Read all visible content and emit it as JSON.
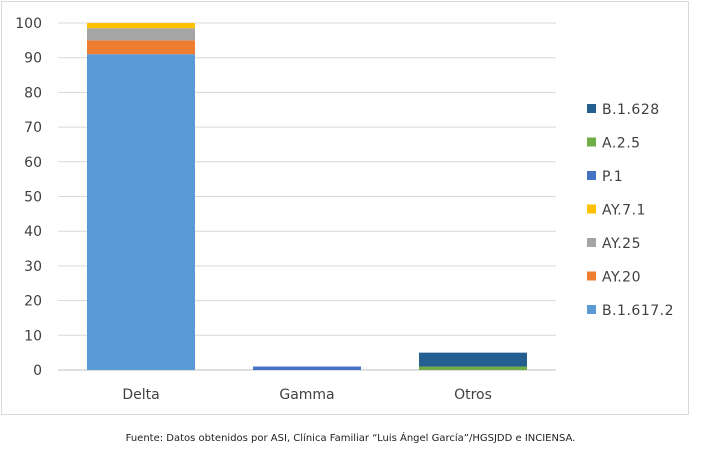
{
  "chart_data": {
    "type": "bar",
    "stacked": true,
    "categories": [
      "Delta",
      "Gamma",
      "Otros"
    ],
    "series": [
      {
        "name": "B.1.617.2",
        "color": "#5b9bd5",
        "values": [
          91,
          0,
          0
        ]
      },
      {
        "name": "AY.20",
        "color": "#ed7d31",
        "values": [
          4,
          0,
          0
        ]
      },
      {
        "name": "AY.25",
        "color": "#a5a5a5",
        "values": [
          3.5,
          0,
          0
        ]
      },
      {
        "name": "AY.7.1",
        "color": "#ffc000",
        "values": [
          1.5,
          0,
          0
        ]
      },
      {
        "name": "P.1",
        "color": "#4472c4",
        "values": [
          0,
          1,
          0
        ]
      },
      {
        "name": "A.2.5",
        "color": "#70ad47",
        "values": [
          0,
          0,
          1
        ]
      },
      {
        "name": "B.1.628",
        "color": "#255e91",
        "values": [
          0,
          0,
          4
        ]
      }
    ],
    "ylim": [
      0,
      100
    ],
    "yticks": [
      0,
      10,
      20,
      30,
      40,
      50,
      60,
      70,
      80,
      90,
      100
    ],
    "grid": true,
    "legend_position": "right"
  },
  "source_note": "Fuente: Datos obtenidos por ASI, Clínica Familiar “Luis Ángel García”/HGSJDD e INCIENSA."
}
